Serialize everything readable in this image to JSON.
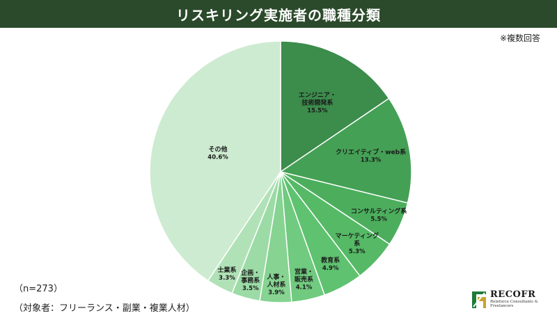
{
  "header": {
    "title": "リスキリング実施者の職種分類"
  },
  "note": "※複数回答",
  "footnotes": {
    "n": "（n=273）",
    "target": "（対象者：フリーランス・副業・複業人材）"
  },
  "logo": {
    "name": "RECOFR",
    "tagline": "Reinforce Consultants & Freelancers"
  },
  "colors": {
    "title_bg": "#2b4a2b",
    "slice_border": "#ffffff"
  },
  "chart_data": {
    "type": "pie",
    "start_angle_deg": 0,
    "direction": "clockwise",
    "slices": [
      {
        "label_lines": [
          "エンジニア・",
          "技術開発系"
        ],
        "value": 15.5,
        "pct_label": "15.5%",
        "color": "#3c8c4c"
      },
      {
        "label_lines": [
          "クリエイティブ・web系"
        ],
        "value": 13.3,
        "pct_label": "13.3%",
        "color": "#44a055"
      },
      {
        "label_lines": [
          "コンサルティング系"
        ],
        "value": 5.5,
        "pct_label": "5.5%",
        "color": "#4cae5d"
      },
      {
        "label_lines": [
          "マーケティング",
          "系"
        ],
        "value": 5.3,
        "pct_label": "5.3%",
        "color": "#55b966"
      },
      {
        "label_lines": [
          "教育系"
        ],
        "value": 4.9,
        "pct_label": "4.9%",
        "color": "#5fc270"
      },
      {
        "label_lines": [
          "営業・",
          "販売系"
        ],
        "value": 4.1,
        "pct_label": "4.1%",
        "color": "#70ca7f"
      },
      {
        "label_lines": [
          "人事・",
          "人材系"
        ],
        "value": 3.9,
        "pct_label": "3.9%",
        "color": "#86d392"
      },
      {
        "label_lines": [
          "企画・",
          "事務系"
        ],
        "value": 3.5,
        "pct_label": "3.5%",
        "color": "#9cdba6"
      },
      {
        "label_lines": [
          "士業系"
        ],
        "value": 3.3,
        "pct_label": "3.3%",
        "color": "#b1e2b7"
      },
      {
        "label_lines": [
          "その他"
        ],
        "value": 40.6,
        "pct_label": "40.6%",
        "color": "#cdebd0"
      }
    ]
  }
}
